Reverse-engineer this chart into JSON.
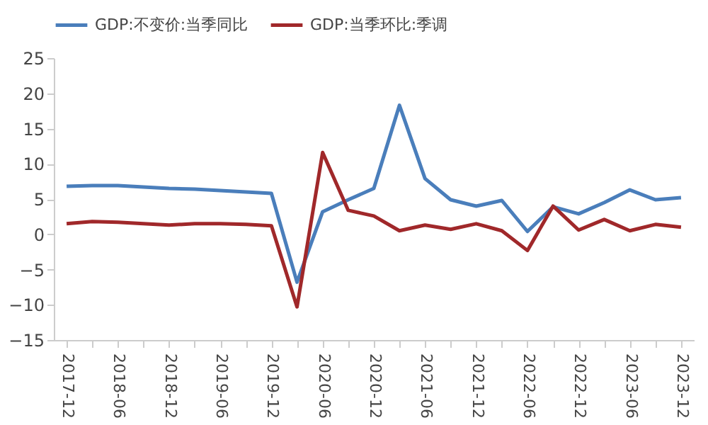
{
  "chart_data": {
    "type": "line",
    "categories": [
      "2017-12",
      null,
      "2018-06",
      null,
      "2018-12",
      null,
      "2019-06",
      null,
      "2019-12",
      null,
      "2020-06",
      null,
      "2020-12",
      null,
      "2021-06",
      null,
      "2021-12",
      null,
      "2022-06",
      null,
      "2022-12",
      null,
      "2023-06",
      null,
      "2023-12"
    ],
    "series": [
      {
        "name": "GDP:不变价:当季同比",
        "color": "#4a7ebb",
        "values": [
          6.8,
          6.9,
          6.9,
          6.7,
          6.5,
          6.4,
          6.2,
          6.0,
          5.8,
          -6.8,
          3.2,
          4.9,
          6.5,
          18.3,
          7.9,
          4.9,
          4.0,
          4.8,
          0.4,
          3.9,
          2.9,
          4.5,
          6.3,
          4.9,
          5.2
        ]
      },
      {
        "name": "GDP:当季环比:季调",
        "color": "#a0282a",
        "values": [
          1.5,
          1.8,
          1.7,
          1.5,
          1.3,
          1.5,
          1.5,
          1.4,
          1.2,
          -10.3,
          11.6,
          3.4,
          2.6,
          0.5,
          1.3,
          0.7,
          1.5,
          0.5,
          -2.3,
          4.0,
          0.6,
          2.1,
          0.5,
          1.4,
          1.0
        ]
      }
    ],
    "ylim": [
      -15,
      25
    ],
    "yticks": [
      -15,
      -10,
      -5,
      0,
      5,
      10,
      15,
      20,
      25
    ],
    "grid": false,
    "legend": "top",
    "marker": "none",
    "line_style": "solid"
  }
}
